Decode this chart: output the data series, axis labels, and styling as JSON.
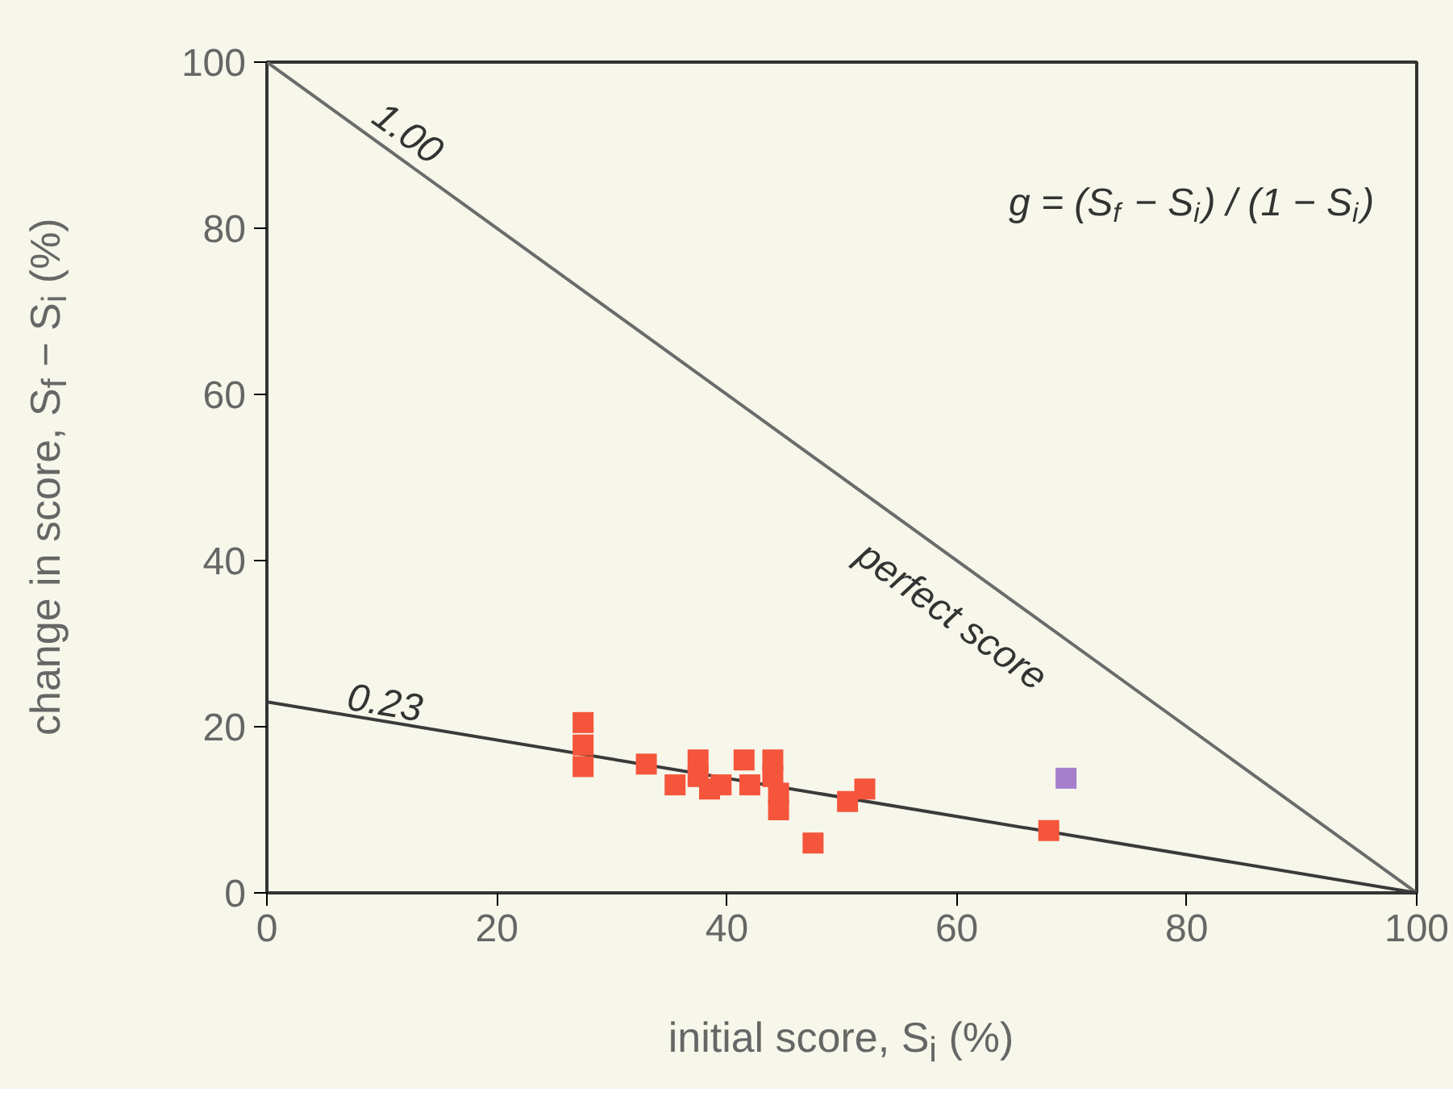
{
  "chart_data": {
    "type": "scatter",
    "xlabel": "initial score, S$_{i}$ (%)",
    "ylabel": "change in score, S$_{f}$ − S$_{i}$ (%)",
    "xlim": [
      0,
      100
    ],
    "ylim": [
      0,
      100
    ],
    "xticks": [
      0,
      20,
      40,
      60,
      80,
      100
    ],
    "yticks": [
      0,
      20,
      40,
      60,
      80,
      100
    ],
    "grid": false,
    "series": [
      {
        "type": "line",
        "color": "#6b6b6b",
        "x": [
          0,
          100
        ],
        "values": [
          100,
          0
        ]
      },
      {
        "type": "line",
        "color": "#3a3a3a",
        "x": [
          0,
          100
        ],
        "values": [
          23,
          0
        ]
      },
      {
        "color": "#f4553b",
        "marker": "square",
        "x": [
          27.5,
          27.5,
          27.5,
          33,
          35.5,
          37.5,
          37.5,
          38.5,
          39.5,
          41.5,
          42,
          44,
          44.5,
          44.5,
          44,
          47.5,
          50.5,
          52,
          68
        ],
        "values": [
          20.5,
          17.8,
          15.2,
          15.5,
          13,
          16,
          14,
          12.5,
          13,
          16,
          13,
          14,
          12,
          10,
          16,
          6,
          11,
          12.5,
          7.5
        ]
      },
      {
        "color": "#a57fcc",
        "marker": "square",
        "x": [
          69.5
        ],
        "values": [
          13.8
        ]
      }
    ],
    "annotations": [
      "1.00",
      "perfect score",
      "0.23",
      "g = (S$_{f}$ − S$_{i}$) / (1 − S$_{i}$)"
    ]
  }
}
